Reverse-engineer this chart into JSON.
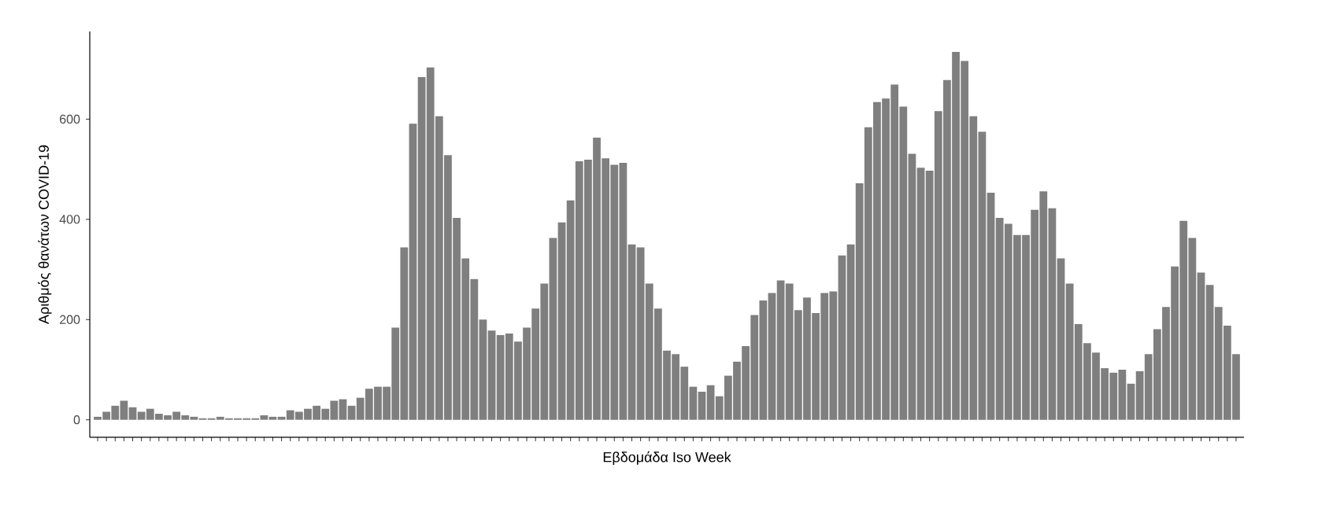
{
  "chart_data": {
    "type": "bar",
    "xlabel": "Εβδομάδα Iso Week",
    "ylabel": "Αριθμός θανάτων COVID-19",
    "color": "#7f7f7f",
    "categories": [
      null,
      null,
      null,
      null,
      null,
      null,
      null,
      null,
      null,
      null,
      null,
      null,
      null,
      null,
      null,
      null,
      null,
      null,
      null,
      null,
      null,
      null,
      null,
      null,
      null,
      null,
      null,
      null,
      null,
      null,
      null,
      null,
      null,
      null,
      null,
      null,
      null,
      null,
      null,
      null,
      null,
      null,
      null,
      null,
      null,
      null,
      null,
      null,
      null,
      null,
      null,
      null,
      null,
      null,
      null,
      null,
      null,
      null,
      null,
      null,
      null,
      null,
      null,
      null,
      null,
      null,
      null,
      null,
      null,
      null,
      null,
      null,
      null,
      null,
      null,
      null,
      null,
      null,
      null,
      null,
      null,
      null,
      null,
      null,
      null,
      null,
      null,
      null,
      null,
      null,
      null,
      null,
      null,
      null,
      null,
      null,
      null,
      null,
      null,
      null,
      null,
      null,
      null,
      null,
      null,
      null,
      null,
      null,
      null,
      null,
      null,
      null,
      null,
      null,
      null,
      null,
      null,
      null,
      null,
      null,
      null,
      null,
      null,
      null,
      null,
      null,
      null,
      null,
      null,
      null,
      null
    ],
    "values": [
      6,
      16,
      28,
      38,
      25,
      16,
      22,
      12,
      9,
      16,
      9,
      6,
      3,
      3,
      6,
      3,
      3,
      3,
      3,
      9,
      6,
      6,
      19,
      16,
      22,
      28,
      22,
      38,
      41,
      28,
      44,
      62,
      66,
      66,
      184,
      344,
      591,
      684,
      703,
      606,
      528,
      403,
      322,
      281,
      200,
      178,
      169,
      172,
      156,
      184,
      222,
      272,
      363,
      394,
      438,
      516,
      519,
      563,
      522,
      509,
      513,
      350,
      344,
      272,
      222,
      138,
      131,
      106,
      66,
      56,
      69,
      47,
      88,
      116,
      147,
      209,
      238,
      253,
      278,
      272,
      219,
      244,
      213,
      253,
      256,
      328,
      350,
      472,
      584,
      634,
      641,
      669,
      625,
      531,
      503,
      497,
      616,
      678,
      734,
      716,
      606,
      575,
      453,
      403,
      391,
      369,
      369,
      419,
      456,
      422,
      322,
      272,
      191,
      153,
      134,
      103,
      94,
      100,
      72,
      97,
      131,
      181,
      225,
      306,
      397,
      363,
      294,
      269,
      225,
      188,
      131
    ],
    "ylim": [
      -35,
      775
    ],
    "yticks": [
      0,
      200,
      400,
      600
    ]
  }
}
